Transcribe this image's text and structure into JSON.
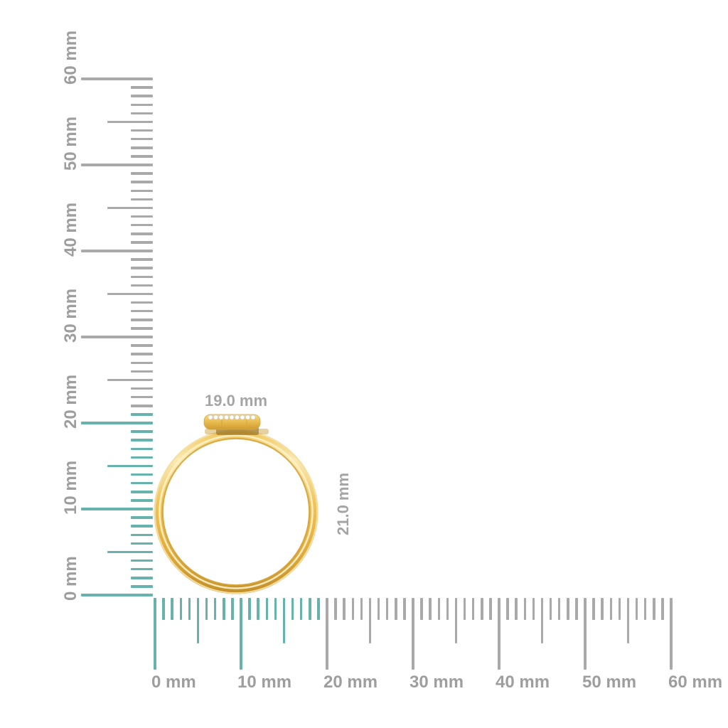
{
  "object": {
    "name": "gold ring with diamond-set round disc, front view",
    "band_color_main": "#edbf55",
    "band_color_light": "#fbeab3",
    "band_color_highlight": "#fdf3cf",
    "band_color_shadow": "#c6922c",
    "diamond_color": "#ffffff",
    "diamond_count": 9
  },
  "dimension_labels": {
    "width": "19.0 mm",
    "height": "21.0 mm"
  },
  "rulers": {
    "tick_color_highlight": "#67b2ac",
    "tick_color_default": "#a9a9a9",
    "label_color": "#9e9e9e",
    "vertical": {
      "max_mm": 60,
      "minor_step_mm": 1,
      "medium_step_mm": 5,
      "major_step_mm": 10,
      "highlight_up_to_mm": 21,
      "major_labels": [
        "0 mm",
        "10 mm",
        "20 mm",
        "30 mm",
        "40 mm",
        "50 mm",
        "60 mm"
      ]
    },
    "horizontal": {
      "max_mm": 60,
      "minor_step_mm": 1,
      "medium_step_mm": 5,
      "major_step_mm": 10,
      "highlight_up_to_mm": 19,
      "major_labels": [
        "0 mm",
        "10 mm",
        "20 mm",
        "30 mm",
        "40 mm",
        "50 mm",
        "60 mm"
      ]
    }
  }
}
